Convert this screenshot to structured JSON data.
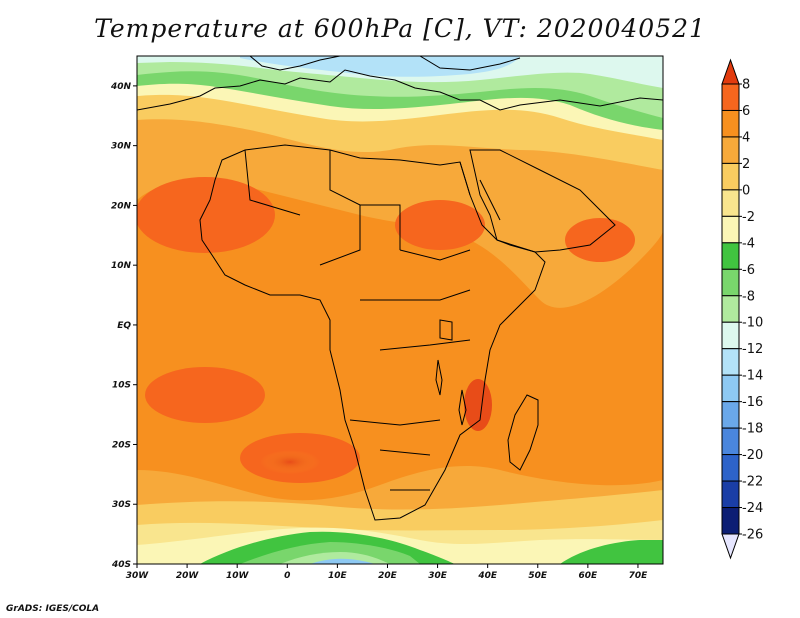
{
  "title": "Temperature at 600hPa [C], VT: 2020040521",
  "credit": "GrADS: IGES/COLA",
  "map": {
    "lon_range": [
      -30,
      75
    ],
    "lat_range": [
      -40,
      45
    ],
    "y_ticks": [
      {
        "lat": 40,
        "label": "40N"
      },
      {
        "lat": 30,
        "label": "30N"
      },
      {
        "lat": 20,
        "label": "20N"
      },
      {
        "lat": 10,
        "label": "10N"
      },
      {
        "lat": 0,
        "label": "EQ"
      },
      {
        "lat": -10,
        "label": "10S"
      },
      {
        "lat": -20,
        "label": "20S"
      },
      {
        "lat": -30,
        "label": "30S"
      },
      {
        "lat": -40,
        "label": "40S"
      }
    ],
    "x_ticks": [
      {
        "lon": -30,
        "label": "30W"
      },
      {
        "lon": -20,
        "label": "20W"
      },
      {
        "lon": -10,
        "label": "10W"
      },
      {
        "lon": 0,
        "label": "0"
      },
      {
        "lon": 10,
        "label": "10E"
      },
      {
        "lon": 20,
        "label": "20E"
      },
      {
        "lon": 30,
        "label": "30E"
      },
      {
        "lon": 40,
        "label": "40E"
      },
      {
        "lon": 50,
        "label": "50E"
      },
      {
        "lon": 60,
        "label": "60E"
      },
      {
        "lon": 70,
        "label": "70E"
      }
    ]
  },
  "colorbar": {
    "levels": [
      "8",
      "6",
      "4",
      "2",
      "0",
      "-2",
      "-4",
      "-6",
      "-8",
      "-10",
      "-12",
      "-14",
      "-16",
      "-18",
      "-20",
      "-22",
      "-24",
      "-26"
    ],
    "colors": [
      "#e23b0e",
      "#f6661e",
      "#f7901f",
      "#f7a93a",
      "#f9cc60",
      "#f9e58e",
      "#fbf6b6",
      "#41c440",
      "#79d66c",
      "#b0ea9e",
      "#ddf8ee",
      "#b3e2f8",
      "#8ec9f3",
      "#6aa8ea",
      "#4a86dd",
      "#2d63c9",
      "#1a3ea6",
      "#0c1e74",
      "#e6e6ff"
    ]
  }
}
